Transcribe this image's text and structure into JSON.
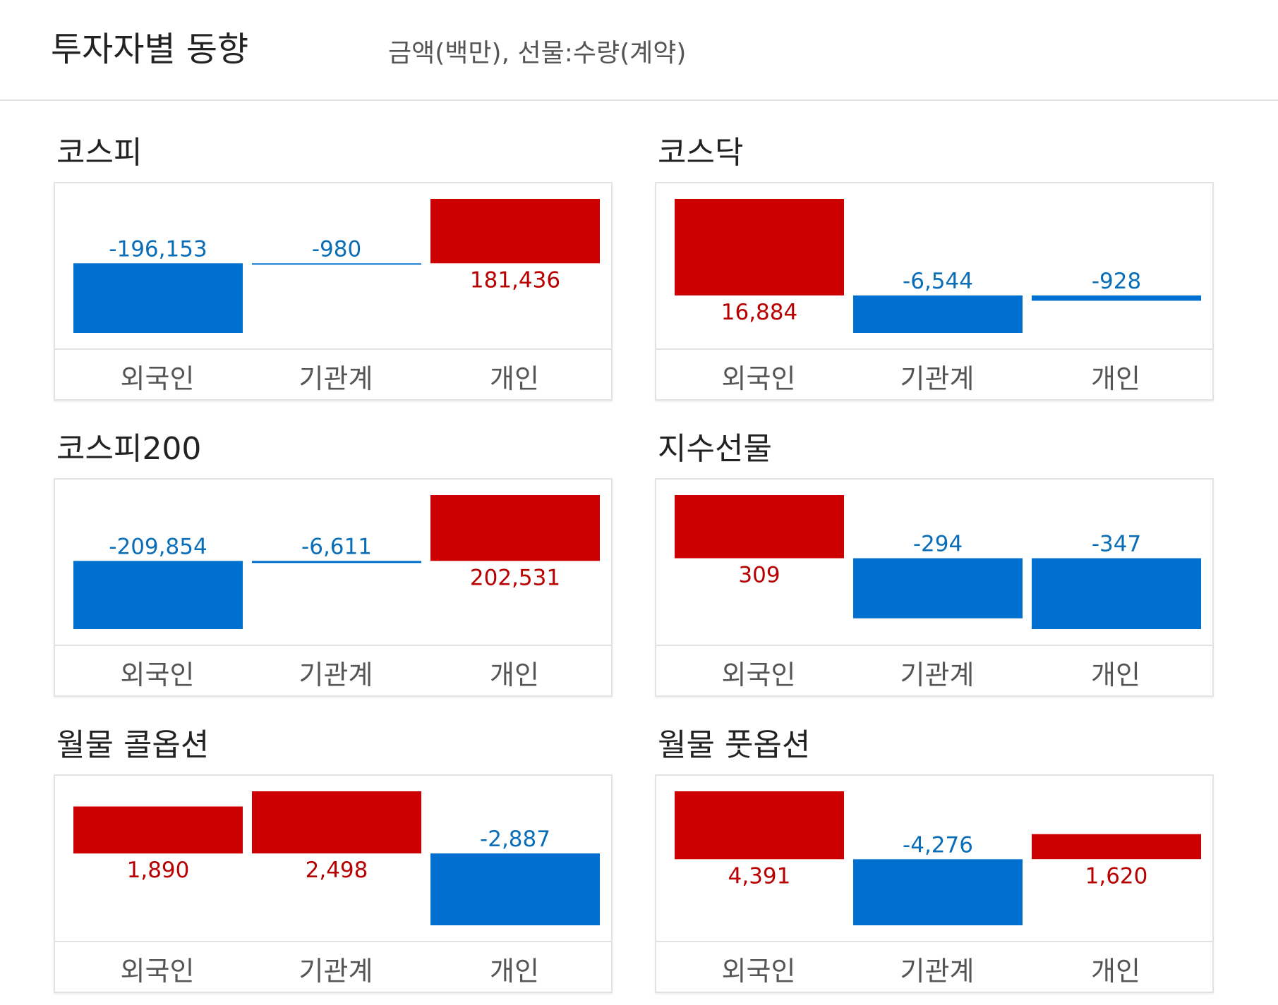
{
  "header": {
    "title": "투자자별 동향",
    "unit_note": "금액(백만), 선물:수량(계약)"
  },
  "colors": {
    "positive": "#cc0000",
    "negative": "#0070d0",
    "positive_text": "#b80000",
    "negative_text": "#0a6db8"
  },
  "chart_data": [
    {
      "type": "bar",
      "title": "코스피",
      "categories": [
        "외국인",
        "기관계",
        "개인"
      ],
      "values": [
        -196153,
        -980,
        181436
      ],
      "value_labels": [
        "-196,153",
        "-980",
        "181,436"
      ]
    },
    {
      "type": "bar",
      "title": "코스닥",
      "categories": [
        "외국인",
        "기관계",
        "개인"
      ],
      "values": [
        16884,
        -6544,
        -928
      ],
      "value_labels": [
        "16,884",
        "-6,544",
        "-928"
      ]
    },
    {
      "type": "bar",
      "title": "코스피200",
      "categories": [
        "외국인",
        "기관계",
        "개인"
      ],
      "values": [
        -209854,
        -6611,
        202531
      ],
      "value_labels": [
        "-209,854",
        "-6,611",
        "202,531"
      ]
    },
    {
      "type": "bar",
      "title": "지수선물",
      "categories": [
        "외국인",
        "기관계",
        "개인"
      ],
      "values": [
        309,
        -294,
        -347
      ],
      "value_labels": [
        "309",
        "-294",
        "-347"
      ]
    },
    {
      "type": "bar",
      "title": "월물 콜옵션",
      "categories": [
        "외국인",
        "기관계",
        "개인"
      ],
      "values": [
        1890,
        2498,
        -2887
      ],
      "value_labels": [
        "1,890",
        "2,498",
        "-2,887"
      ]
    },
    {
      "type": "bar",
      "title": "월물 풋옵션",
      "categories": [
        "외국인",
        "기관계",
        "개인"
      ],
      "values": [
        4391,
        -4276,
        1620
      ],
      "value_labels": [
        "4,391",
        "-4,276",
        "1,620"
      ]
    }
  ]
}
